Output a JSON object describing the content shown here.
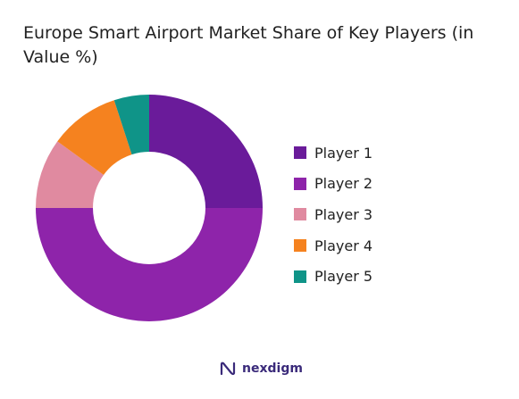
{
  "chart_data": {
    "type": "pie",
    "variant": "donut",
    "title": "Europe Smart Airport Market Share of Key Players (in Value %)",
    "unit": "%",
    "labels": [
      "Player 1",
      "Player 2",
      "Player 3",
      "Player 4",
      "Player 5"
    ],
    "values": [
      25,
      50,
      10,
      10,
      5
    ],
    "colors": [
      "#6a1b9a",
      "#8e24aa",
      "#e08aa0",
      "#f5821f",
      "#0f9488"
    ],
    "start": "12 o'clock",
    "direction": "clockwise",
    "legend": "right"
  },
  "brand": {
    "name": "nexdigm"
  }
}
